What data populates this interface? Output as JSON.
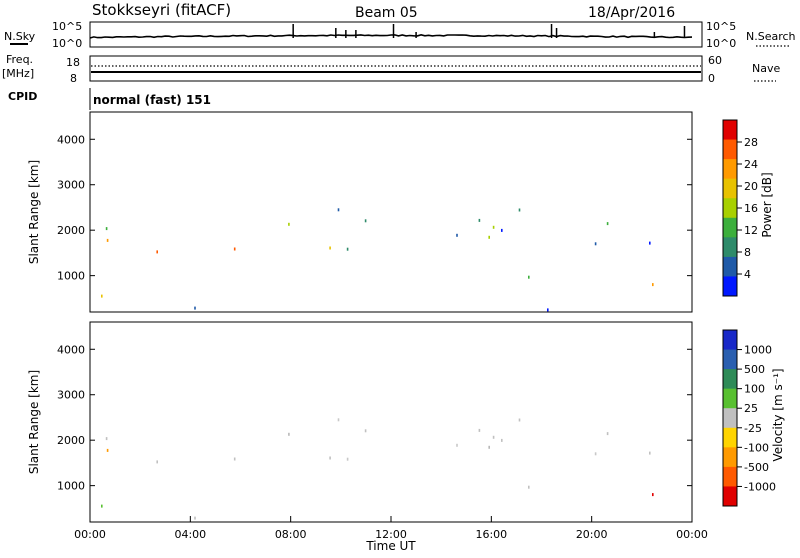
{
  "header": {
    "station": "Stokkseyri (fitACF)",
    "beam": "Beam 05",
    "date": "18/Apr/2016"
  },
  "strips": {
    "nsky_label": "N.Sky",
    "nsky_top": "10^5",
    "nsky_bottom": "10^0",
    "nsearch_label": "N.Search",
    "freq_label_1": "Freq.",
    "freq_label_2": "[MHz]",
    "freq_top": "18",
    "freq_bottom": "8",
    "nave_top": "60",
    "nave_bottom": "0",
    "nave_label": "Nave",
    "cpid_label": "CPID",
    "cpid_value": "normal (fast) 151"
  },
  "chart_data": [
    {
      "type": "heatmap",
      "name": "power",
      "ylabel": "Slant Range [km]",
      "ylim": [
        200,
        4600
      ],
      "yticks": [
        1000,
        2000,
        3000,
        4000
      ],
      "xlim": [
        0,
        24
      ],
      "colorbar_label": "Power [dB]",
      "colorbar_ticks": [
        "28",
        "24",
        "20",
        "16",
        "12",
        "8",
        "4"
      ],
      "colorbar_colors": [
        "#e00000",
        "#ff5a00",
        "#ff9a00",
        "#e8c200",
        "#a8d000",
        "#3caf3c",
        "#2e8b6a",
        "#1f5aa8",
        "#0018ff"
      ]
    },
    {
      "type": "heatmap",
      "name": "velocity",
      "ylabel": "Slant Range [km]",
      "ylim": [
        200,
        4600
      ],
      "yticks": [
        1000,
        2000,
        3000,
        4000
      ],
      "xlim": [
        0,
        24
      ],
      "xticks": [
        "00:00",
        "04:00",
        "08:00",
        "12:00",
        "16:00",
        "20:00",
        "00:00"
      ],
      "xlabel": "Time UT",
      "colorbar_label": "Velocity [m s⁻¹]",
      "colorbar_ticks": [
        "1000",
        "500",
        "100",
        "25",
        "-25",
        "-100",
        "-500",
        "-1000"
      ],
      "colorbar_colors": [
        "#1828c8",
        "#2a5fb0",
        "#2e8b57",
        "#58c030",
        "#c0c0c0",
        "#ffd400",
        "#ff9a00",
        "#ff5a00",
        "#e00000"
      ]
    }
  ]
}
